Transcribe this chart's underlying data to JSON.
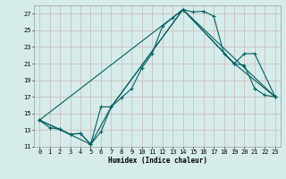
{
  "xlabel": "Humidex (Indice chaleur)",
  "ylabel": "",
  "bg_color": "#d6ecea",
  "grid_color": "#c8b8b8",
  "line_color": "#006060",
  "xlim": [
    -0.5,
    23.5
  ],
  "ylim": [
    11,
    28
  ],
  "yticks": [
    11,
    13,
    15,
    17,
    19,
    21,
    23,
    25,
    27
  ],
  "xticks": [
    0,
    1,
    2,
    3,
    4,
    5,
    6,
    7,
    8,
    9,
    10,
    11,
    12,
    13,
    14,
    15,
    16,
    17,
    18,
    19,
    20,
    21,
    22,
    23
  ],
  "line1_x": [
    0,
    1,
    2,
    3,
    4,
    5,
    6,
    7,
    8,
    9,
    10,
    11,
    12,
    13,
    14,
    15,
    16,
    17,
    18,
    19,
    20,
    21,
    22,
    23
  ],
  "line1_y": [
    14.2,
    13.3,
    13.1,
    12.5,
    12.6,
    11.3,
    12.8,
    15.8,
    16.9,
    18.0,
    20.5,
    22.2,
    25.5,
    26.5,
    27.5,
    27.2,
    27.3,
    26.7,
    22.2,
    21.0,
    20.8,
    18.0,
    17.2,
    17.0
  ],
  "line2_x": [
    0,
    2,
    3,
    4,
    5,
    6,
    7,
    14,
    19,
    20,
    21,
    23
  ],
  "line2_y": [
    14.2,
    13.1,
    12.5,
    12.6,
    11.3,
    15.8,
    15.8,
    27.5,
    21.0,
    22.2,
    22.2,
    17.0
  ],
  "line3_x": [
    0,
    5,
    7,
    14,
    19,
    23
  ],
  "line3_y": [
    14.2,
    11.3,
    15.8,
    27.5,
    21.0,
    17.0
  ],
  "line4_x": [
    0,
    14,
    23
  ],
  "line4_y": [
    14.2,
    27.5,
    17.0
  ]
}
